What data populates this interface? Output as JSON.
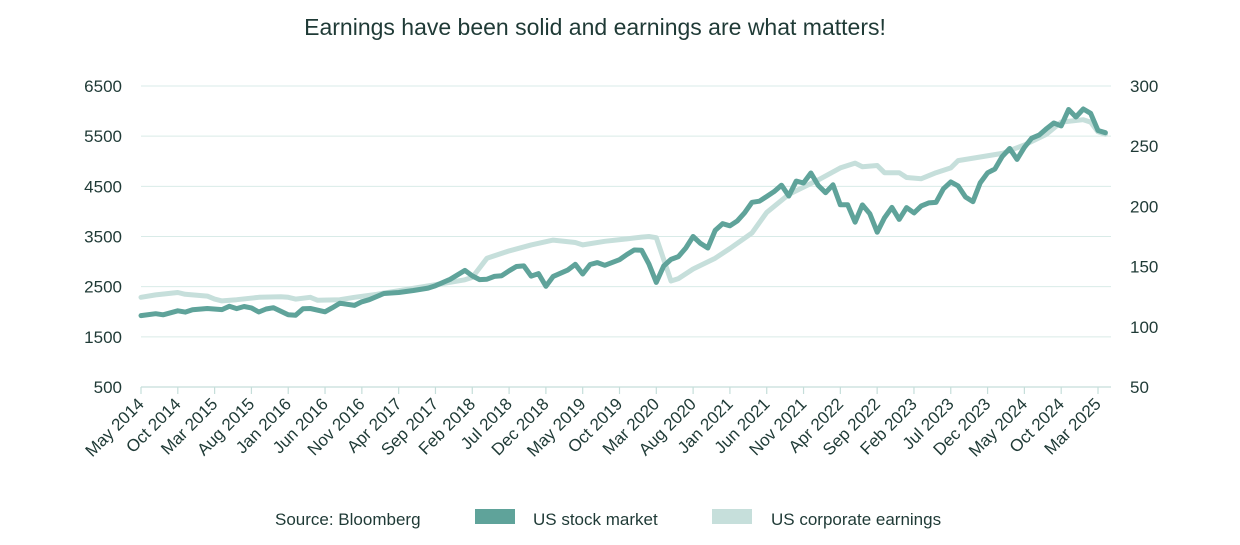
{
  "chart_data": {
    "type": "line",
    "title": "Earnings have been solid and earnings are what matters!",
    "source": "Source: Bloomberg",
    "xlabel": "",
    "ylabel_left": "",
    "ylabel_right": "",
    "x_tick_labels": [
      "May 2014",
      "Oct 2014",
      "Mar 2015",
      "Aug 2015",
      "Jan 2016",
      "Jun 2016",
      "Nov 2016",
      "Apr 2017",
      "Sep 2017",
      "Feb 2018",
      "Jul 2018",
      "Dec 2018",
      "May 2019",
      "Oct 2019",
      "Mar 2020",
      "Aug 2020",
      "Jan 2021",
      "Jun 2021",
      "Nov 2021",
      "Apr 2022",
      "Sep 2022",
      "Feb 2023",
      "Jul 2023",
      "Dec 2023",
      "May 2024",
      "Oct 2024",
      "Mar 2025"
    ],
    "y_left": {
      "ylim": [
        500,
        6500
      ],
      "ticks": [
        "500",
        "1500",
        "2500",
        "3500",
        "4500",
        "5500",
        "6500"
      ]
    },
    "y_right": {
      "ylim": [
        50,
        300
      ],
      "ticks": [
        "50",
        "100",
        "150",
        "200",
        "250",
        "300"
      ]
    },
    "grid": "horizontal",
    "legend_position": "bottom",
    "series": [
      {
        "name": "US stock market",
        "axis": "left",
        "color": "#5fa39a",
        "points": [
          [
            "2014-05",
            1924
          ],
          [
            "2014-07",
            1961
          ],
          [
            "2014-08",
            1940
          ],
          [
            "2014-10",
            2018
          ],
          [
            "2014-11",
            1994
          ],
          [
            "2014-12",
            2040
          ],
          [
            "2015-02",
            2065
          ],
          [
            "2015-04",
            2042
          ],
          [
            "2015-05",
            2108
          ],
          [
            "2015-06",
            2063
          ],
          [
            "2015-07",
            2104
          ],
          [
            "2015-08",
            2076
          ],
          [
            "2015-09",
            1995
          ],
          [
            "2015-10",
            2054
          ],
          [
            "2015-11",
            2080
          ],
          [
            "2016-01",
            1940
          ],
          [
            "2016-02",
            1932
          ],
          [
            "2016-03",
            2060
          ],
          [
            "2016-04",
            2065
          ],
          [
            "2016-06",
            2000
          ],
          [
            "2016-07",
            2080
          ],
          [
            "2016-08",
            2170
          ],
          [
            "2016-10",
            2126
          ],
          [
            "2016-11",
            2198
          ],
          [
            "2016-12",
            2240
          ],
          [
            "2017-02",
            2363
          ],
          [
            "2017-04",
            2384
          ],
          [
            "2017-06",
            2423
          ],
          [
            "2017-08",
            2472
          ],
          [
            "2017-09",
            2519
          ],
          [
            "2017-11",
            2647
          ],
          [
            "2018-01",
            2824
          ],
          [
            "2018-02",
            2714
          ],
          [
            "2018-03",
            2640
          ],
          [
            "2018-04",
            2648
          ],
          [
            "2018-05",
            2705
          ],
          [
            "2018-06",
            2718
          ],
          [
            "2018-07",
            2816
          ],
          [
            "2018-08",
            2902
          ],
          [
            "2018-09",
            2914
          ],
          [
            "2018-10",
            2711
          ],
          [
            "2018-11",
            2760
          ],
          [
            "2018-12",
            2507
          ],
          [
            "2019-01",
            2704
          ],
          [
            "2019-03",
            2834
          ],
          [
            "2019-04",
            2946
          ],
          [
            "2019-05",
            2752
          ],
          [
            "2019-06",
            2942
          ],
          [
            "2019-07",
            2980
          ],
          [
            "2019-08",
            2926
          ],
          [
            "2019-10",
            3037
          ],
          [
            "2019-11",
            3141
          ],
          [
            "2019-12",
            3231
          ],
          [
            "2020-01",
            3226
          ],
          [
            "2020-02",
            2954
          ],
          [
            "2020-03",
            2585
          ],
          [
            "2020-04",
            2912
          ],
          [
            "2020-05",
            3044
          ],
          [
            "2020-06",
            3100
          ],
          [
            "2020-07",
            3271
          ],
          [
            "2020-08",
            3500
          ],
          [
            "2020-09",
            3363
          ],
          [
            "2020-10",
            3270
          ],
          [
            "2020-11",
            3622
          ],
          [
            "2020-12",
            3756
          ],
          [
            "2021-01",
            3714
          ],
          [
            "2021-02",
            3811
          ],
          [
            "2021-03",
            3973
          ],
          [
            "2021-04",
            4181
          ],
          [
            "2021-05",
            4204
          ],
          [
            "2021-06",
            4298
          ],
          [
            "2021-07",
            4395
          ],
          [
            "2021-08",
            4523
          ],
          [
            "2021-09",
            4308
          ],
          [
            "2021-10",
            4605
          ],
          [
            "2021-11",
            4567
          ],
          [
            "2021-12",
            4766
          ],
          [
            "2022-01",
            4516
          ],
          [
            "2022-02",
            4374
          ],
          [
            "2022-03",
            4530
          ],
          [
            "2022-04",
            4132
          ],
          [
            "2022-05",
            4132
          ],
          [
            "2022-06",
            3785
          ],
          [
            "2022-07",
            4130
          ],
          [
            "2022-08",
            3955
          ],
          [
            "2022-09",
            3586
          ],
          [
            "2022-10",
            3872
          ],
          [
            "2022-11",
            4080
          ],
          [
            "2022-12",
            3840
          ],
          [
            "2023-01",
            4077
          ],
          [
            "2023-02",
            3970
          ],
          [
            "2023-03",
            4109
          ],
          [
            "2023-04",
            4169
          ],
          [
            "2023-05",
            4180
          ],
          [
            "2023-06",
            4450
          ],
          [
            "2023-07",
            4589
          ],
          [
            "2023-08",
            4508
          ],
          [
            "2023-09",
            4288
          ],
          [
            "2023-10",
            4194
          ],
          [
            "2023-11",
            4568
          ],
          [
            "2023-12",
            4770
          ],
          [
            "2024-01",
            4846
          ],
          [
            "2024-02",
            5096
          ],
          [
            "2024-03",
            5254
          ],
          [
            "2024-04",
            5036
          ],
          [
            "2024-05",
            5278
          ],
          [
            "2024-06",
            5460
          ],
          [
            "2024-07",
            5522
          ],
          [
            "2024-08",
            5648
          ],
          [
            "2024-09",
            5762
          ],
          [
            "2024-10",
            5705
          ],
          [
            "2024-11",
            6032
          ],
          [
            "2024-12",
            5882
          ],
          [
            "2025-01",
            6041
          ],
          [
            "2025-02",
            5955
          ],
          [
            "2025-03",
            5612
          ],
          [
            "2025-04",
            5570
          ]
        ]
      },
      {
        "name": "US corporate earnings",
        "axis": "right",
        "color": "#c6dfdb",
        "points": [
          [
            "2014-05",
            124.5
          ],
          [
            "2014-07",
            126.5
          ],
          [
            "2014-10",
            128.5
          ],
          [
            "2014-11",
            127
          ],
          [
            "2015-02",
            125.5
          ],
          [
            "2015-03",
            123
          ],
          [
            "2015-04",
            121.5
          ],
          [
            "2015-06",
            122.5
          ],
          [
            "2015-09",
            124.5
          ],
          [
            "2015-12",
            125
          ],
          [
            "2016-01",
            124.5
          ],
          [
            "2016-02",
            123
          ],
          [
            "2016-04",
            124.5
          ],
          [
            "2016-05",
            122
          ],
          [
            "2016-08",
            122.5
          ],
          [
            "2016-10",
            124.5
          ],
          [
            "2017-01",
            127
          ],
          [
            "2017-04",
            130
          ],
          [
            "2017-07",
            133
          ],
          [
            "2017-10",
            136
          ],
          [
            "2018-01",
            139
          ],
          [
            "2018-02",
            141
          ],
          [
            "2018-04",
            157
          ],
          [
            "2018-07",
            163
          ],
          [
            "2018-10",
            168
          ],
          [
            "2019-01",
            172
          ],
          [
            "2019-04",
            170
          ],
          [
            "2019-05",
            168
          ],
          [
            "2019-08",
            171
          ],
          [
            "2019-11",
            173
          ],
          [
            "2020-01",
            174.5
          ],
          [
            "2020-02",
            175
          ],
          [
            "2020-03",
            174
          ],
          [
            "2020-05",
            138
          ],
          [
            "2020-06",
            140
          ],
          [
            "2020-08",
            148
          ],
          [
            "2020-11",
            157
          ],
          [
            "2021-01",
            165
          ],
          [
            "2021-04",
            178
          ],
          [
            "2021-06",
            195
          ],
          [
            "2021-09",
            210
          ],
          [
            "2021-11",
            216
          ],
          [
            "2022-01",
            222
          ],
          [
            "2022-04",
            232
          ],
          [
            "2022-06",
            236
          ],
          [
            "2022-07",
            233
          ],
          [
            "2022-09",
            234
          ],
          [
            "2022-10",
            228
          ],
          [
            "2022-12",
            228
          ],
          [
            "2023-01",
            224
          ],
          [
            "2023-03",
            223
          ],
          [
            "2023-05",
            228
          ],
          [
            "2023-07",
            232
          ],
          [
            "2023-08",
            238
          ],
          [
            "2023-11",
            241
          ],
          [
            "2024-02",
            244
          ],
          [
            "2024-05",
            251
          ],
          [
            "2024-08",
            260
          ],
          [
            "2024-10",
            270
          ],
          [
            "2025-01",
            272
          ],
          [
            "2025-02",
            270
          ],
          [
            "2025-03",
            262
          ],
          [
            "2025-04",
            260
          ]
        ]
      }
    ]
  }
}
